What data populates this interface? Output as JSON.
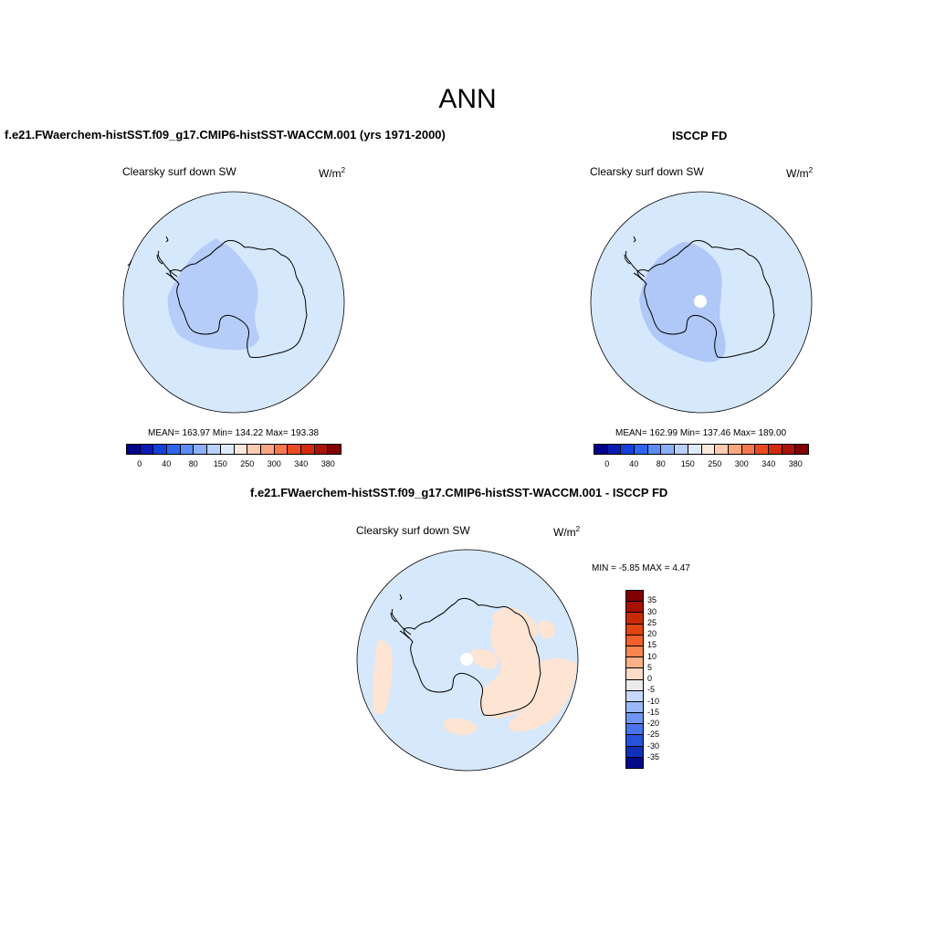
{
  "main_title": "ANN",
  "colors": {
    "ocean": "#d6e8fb",
    "land_blue": "#b6cdf9",
    "land_blue_isccp": "#b0c8f8",
    "diff_ocean": "#d6e8fb",
    "diff_pos": "#fde4d3",
    "pole_hole": "#ffffff",
    "coast": "#000000"
  },
  "panels": [
    {
      "id": "model",
      "title": "f.e21.FWaerchem-histSST.f09_g17.CMIP6-histSST-WACCM.001 (yrs 1971-2000)",
      "variable": "Clearsky surf down SW",
      "units_base": "W/m",
      "units_exp": "2",
      "stats": "MEAN= 163.97  Min= 134.22  Max= 193.38",
      "mean": 163.97,
      "min": 134.22,
      "max": 193.38
    },
    {
      "id": "obs",
      "title": "ISCCP FD",
      "variable": "Clearsky surf down SW",
      "units_base": "W/m",
      "units_exp": "2",
      "stats": "MEAN= 162.99  Min= 137.46  Max= 189.00",
      "mean": 162.99,
      "min": 137.46,
      "max": 189.0
    }
  ],
  "diff_panel": {
    "title": "f.e21.FWaerchem-histSST.f09_g17.CMIP6-histSST-WACCM.001 - ISCCP FD",
    "variable": "Clearsky surf down SW",
    "units_base": "W/m",
    "units_exp": "2",
    "stats": "MIN =  -5.85 MAX =   4.47",
    "min": -5.85,
    "max": 4.47
  },
  "colorbar_abs": {
    "colors": [
      "#00008c",
      "#0a1ab4",
      "#1440dc",
      "#2d64f0",
      "#5a8cf5",
      "#8cb0f8",
      "#b9d0fb",
      "#dceafd",
      "#fde9dc",
      "#fccbb0",
      "#fba782",
      "#f8784a",
      "#ee4a1f",
      "#d32a0c",
      "#aa1404",
      "#820000"
    ],
    "tick_labels": [
      "0",
      "40",
      "80",
      "150",
      "250",
      "300",
      "340",
      "380"
    ]
  },
  "colorbar_diff": {
    "colors": [
      "#820000",
      "#a81002",
      "#c82a06",
      "#e04410",
      "#f2602a",
      "#f8864e",
      "#fbb08a",
      "#fddcc6",
      "#ebebeb",
      "#c6d8fb",
      "#9ab8f7",
      "#6e96f2",
      "#4874eb",
      "#2652dc",
      "#1030b8",
      "#000a8a"
    ],
    "tick_labels": [
      "35",
      "30",
      "25",
      "20",
      "15",
      "10",
      "5",
      "0",
      "-5",
      "-10",
      "-15",
      "-20",
      "-25",
      "-30",
      "-35"
    ]
  }
}
